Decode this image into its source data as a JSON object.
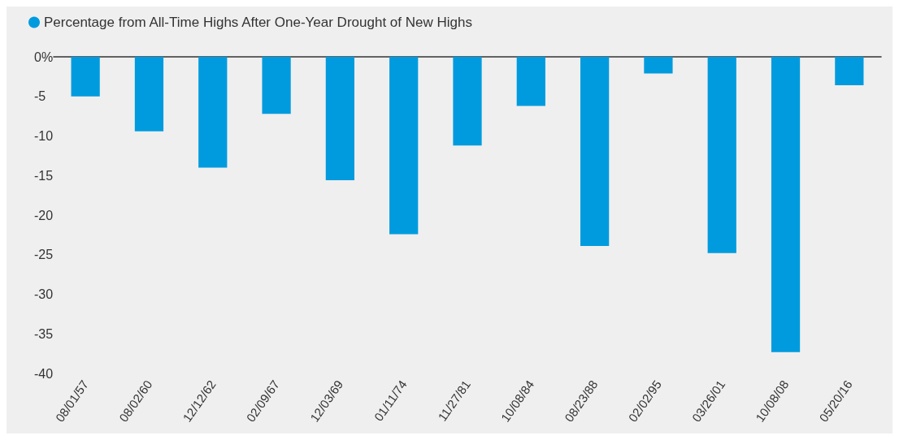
{
  "chart_data": {
    "type": "bar",
    "categories": [
      "08/01/57",
      "08/02/60",
      "12/12/62",
      "02/09/67",
      "12/03/69",
      "01/11/74",
      "11/27/81",
      "10/08/84",
      "08/23/88",
      "02/02/95",
      "03/26/01",
      "10/08/08",
      "05/20/16"
    ],
    "series": [
      {
        "name": "Percentage from All-Time Highs After One-Year Drought of New Highs",
        "color": "#009bde",
        "values": [
          -5.0,
          -9.4,
          -14.0,
          -7.2,
          -15.6,
          -22.4,
          -11.2,
          -6.2,
          -23.9,
          -2.1,
          -24.8,
          -37.3,
          -3.6
        ]
      }
    ],
    "ylim": [
      -40,
      0
    ],
    "yticks": [
      {
        "value": 0,
        "label": "0%"
      },
      -5,
      -10,
      -15,
      -20,
      -25,
      -30,
      -35,
      -40
    ],
    "grid": false,
    "legend": "top left"
  }
}
